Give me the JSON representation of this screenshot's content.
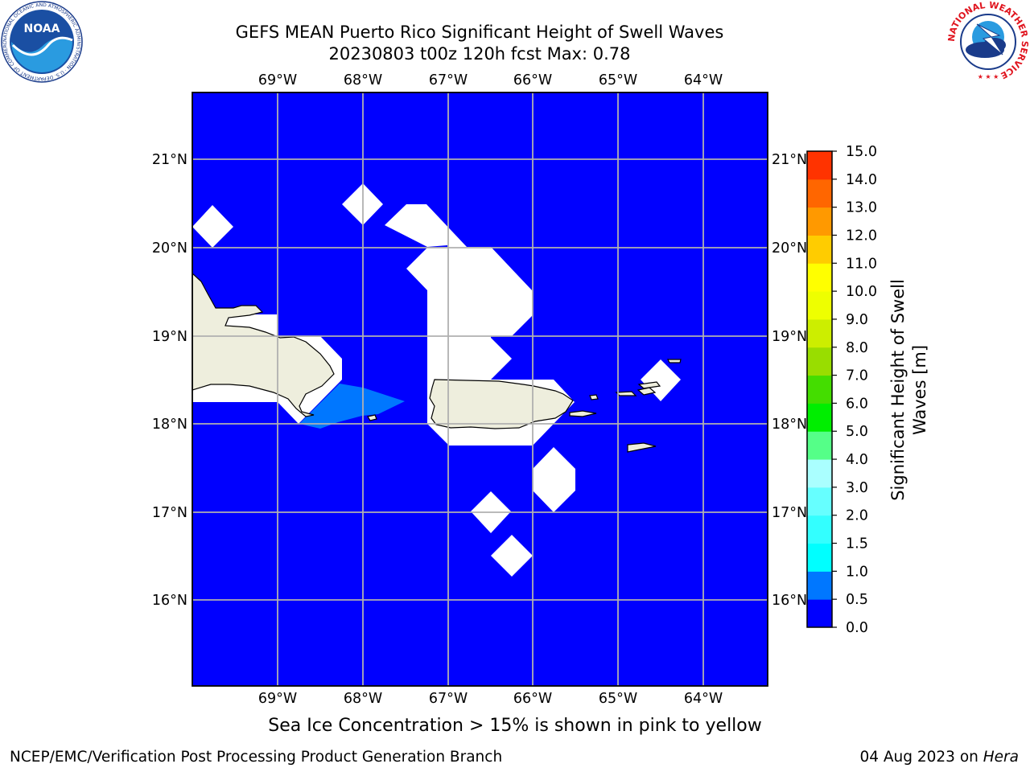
{
  "header": {
    "title_line1": "GEFS MEAN Puerto Rico Significant Height of Swell Waves",
    "title_line2": "20230803 t00z 120h fcst   Max: 0.78"
  },
  "logos": {
    "left_text": "NOAA",
    "left_ring_text": "NATIONAL OCEANIC AND ATMOSPHERIC ADMINISTRATION · U.S. DEPARTMENT OF COMMERCE",
    "right_ring_text": "NATIONAL WEATHER SERVICE"
  },
  "map": {
    "lon_labels": [
      "69°W",
      "68°W",
      "67°W",
      "66°W",
      "65°W",
      "64°W"
    ],
    "lat_labels": [
      "21°N",
      "20°N",
      "19°N",
      "18°N",
      "17°N",
      "16°N"
    ],
    "ocean_color": "#0000ff",
    "land_color": "#eeeedd",
    "missing_color": "#ffffff"
  },
  "colorbar": {
    "label_line1": "Significant Height of Swell",
    "label_line2": "Waves [m]",
    "ticks": [
      "0.0",
      "0.5",
      "1.0",
      "1.5",
      "2.0",
      "3.0",
      "4.0",
      "5.0",
      "6.0",
      "7.0",
      "8.0",
      "9.0",
      "10.0",
      "11.0",
      "12.0",
      "13.0",
      "14.0",
      "15.0"
    ],
    "colors": [
      "#0000ff",
      "#0077ff",
      "#00ffff",
      "#33ffff",
      "#66ffff",
      "#aaffff",
      "#55ff88",
      "#00ee00",
      "#44dd00",
      "#99dd00",
      "#ccee00",
      "#eeff00",
      "#ffff00",
      "#ffcc00",
      "#ff9900",
      "#ff6600",
      "#ff3300",
      "#ff0000"
    ]
  },
  "footer": {
    "note": "Sea Ice Concentration > 15% is shown in pink to yellow",
    "left": "NCEP/EMC/Verification Post Processing Product Generation Branch",
    "date": "04 Aug 2023 on ",
    "host": "Hera"
  }
}
